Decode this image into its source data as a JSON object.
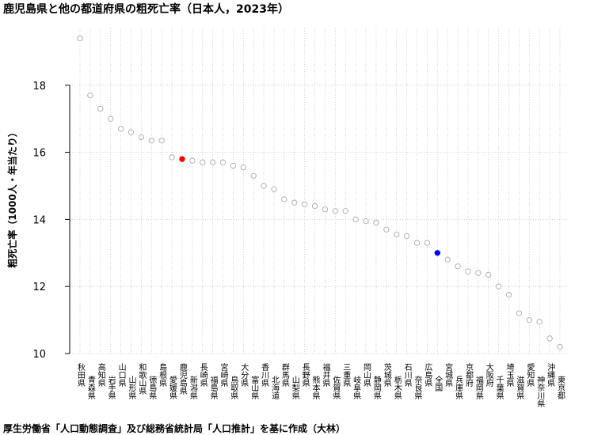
{
  "title": "鹿児島県と他の都道府県の粗死亡率（日本人，2023年）",
  "caption": "厚生労働省「人口動態調査」及び総務省統計局「人口推計」を基に作成（大林）",
  "chart_data": {
    "type": "scatter",
    "title": "鹿児島県と他の都道府県の粗死亡率（日本人，2023年）",
    "xlabel": "",
    "ylabel": "粗死亡率（1000人・年当たり）",
    "ylim": [
      10,
      19.5
    ],
    "yticks": [
      10,
      12,
      14,
      16,
      18
    ],
    "grid": true,
    "colors": {
      "default": "#aaaaaa",
      "highlight_kagoshima": "#ff0000",
      "highlight_national": "#0000ff"
    },
    "categories": [
      "秋田県",
      "青森県",
      "高知県",
      "岩手県",
      "山口県",
      "山形県",
      "和歌山県",
      "徳島県",
      "島根県",
      "愛媛県",
      "鹿児島県",
      "新潟県",
      "長崎県",
      "福島県",
      "宮崎県",
      "鳥取県",
      "大分県",
      "富山県",
      "香川県",
      "北海道",
      "群馬県",
      "山梨県",
      "長野県",
      "熊本県",
      "福井県",
      "佐賀県",
      "三重県",
      "岐阜県",
      "岡山県",
      "静岡県",
      "茨城県",
      "栃木県",
      "石川県",
      "奈良県",
      "広島県",
      "全国",
      "宮城県",
      "兵庫県",
      "京都府",
      "福岡県",
      "大阪府",
      "千葉県",
      "埼玉県",
      "滋賀県",
      "愛知県",
      "神奈川県",
      "沖縄県",
      "東京都"
    ],
    "values": [
      19.4,
      17.7,
      17.3,
      17.0,
      16.7,
      16.6,
      16.45,
      16.35,
      16.35,
      15.85,
      15.8,
      15.75,
      15.7,
      15.7,
      15.7,
      15.6,
      15.55,
      15.3,
      15.0,
      14.9,
      14.6,
      14.5,
      14.45,
      14.4,
      14.3,
      14.25,
      14.25,
      14.0,
      13.95,
      13.9,
      13.7,
      13.55,
      13.5,
      13.3,
      13.3,
      13.0,
      12.8,
      12.6,
      12.45,
      12.4,
      12.35,
      12.0,
      11.75,
      11.2,
      11.0,
      10.95,
      10.45,
      10.2
    ],
    "highlight": {
      "鹿児島県": "highlight_kagoshima",
      "全国": "highlight_national"
    }
  }
}
